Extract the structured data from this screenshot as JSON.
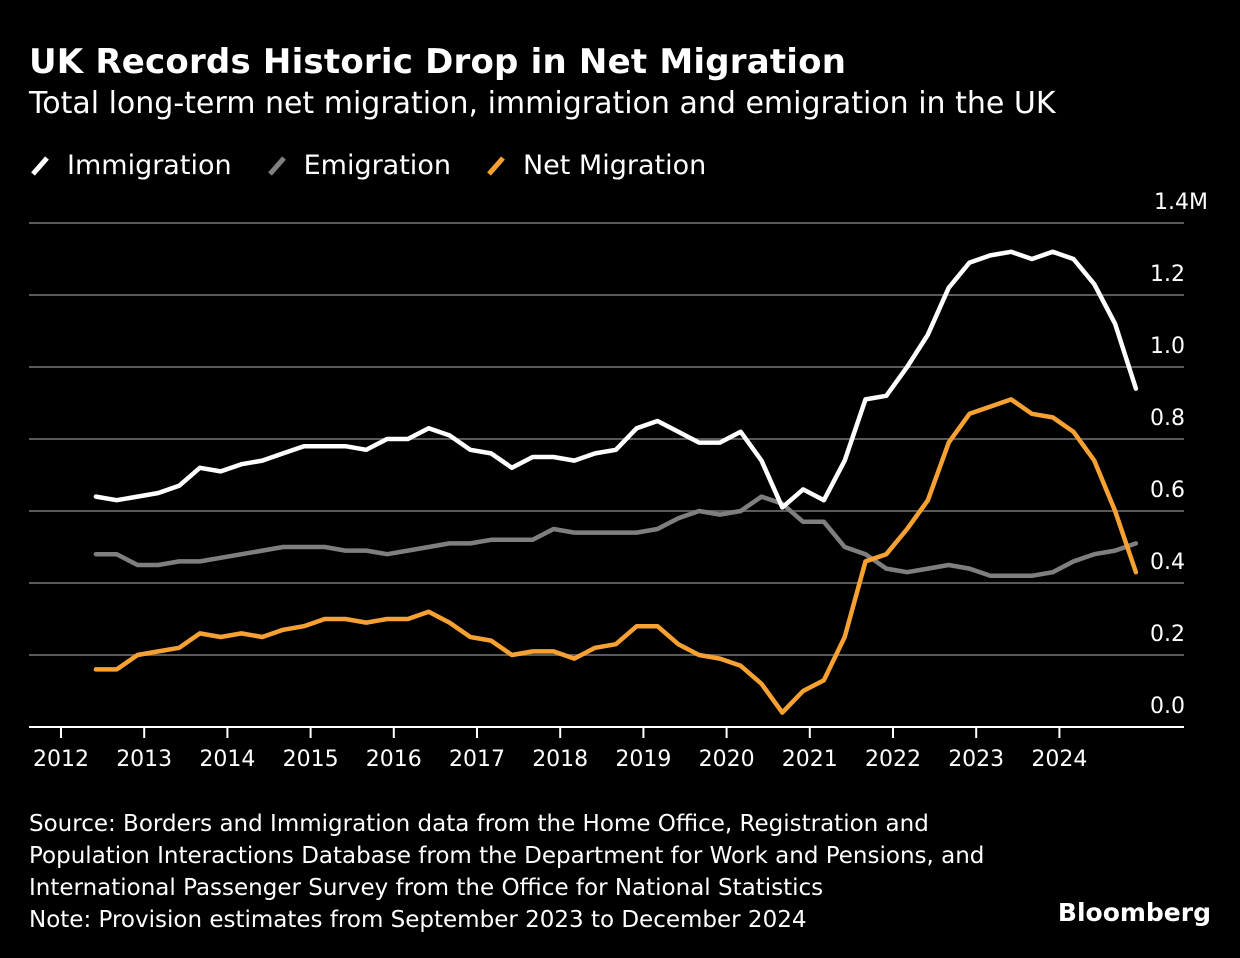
{
  "header": {
    "title": "UK Records Historic Drop in Net Migration",
    "subtitle": "Total long-term net migration, immigration and emigration in the UK"
  },
  "legend": [
    {
      "label": "Immigration",
      "color": "#ffffff",
      "icon": "slash-swatch-icon"
    },
    {
      "label": "Emigration",
      "color": "#7f7f7f",
      "icon": "slash-swatch-icon"
    },
    {
      "label": "Net Migration",
      "color": "#f7a133",
      "icon": "slash-swatch-icon"
    }
  ],
  "footer": {
    "source_lines": [
      "Source: Borders and Immigration data from the Home Office, Registration and",
      "Population Interactions Database from the Department for Work and Pensions, and",
      "International Passenger Survey from the Office for National Statistics",
      "Note: Provision estimates from September 2023 to December 2024"
    ],
    "brand": "Bloomberg"
  },
  "chart_data": {
    "type": "line",
    "title": "UK Records Historic Drop in Net Migration",
    "subtitle": "Total long-term net migration, immigration and emigration in the UK",
    "xlabel": "",
    "ylabel": "",
    "x_start": 2012.42,
    "x_step": 0.25,
    "xlim": [
      2011.6,
      2025.9
    ],
    "xticks": [
      2012,
      2013,
      2014,
      2015,
      2016,
      2017,
      2018,
      2019,
      2020,
      2021,
      2022,
      2023,
      2024
    ],
    "xtick_labels": [
      "2012",
      "2013",
      "2014",
      "2015",
      "2016",
      "2017",
      "2018",
      "2019",
      "2020",
      "2021",
      "2022",
      "2023",
      "2024"
    ],
    "ylim": [
      0,
      1.4
    ],
    "yticks": [
      0.0,
      0.2,
      0.4,
      0.6,
      0.8,
      1.0,
      1.2,
      1.4
    ],
    "ytick_labels": [
      "0.0",
      "0.2",
      "0.4",
      "0.6",
      "0.8",
      "1.0",
      "1.2",
      "1.4M"
    ],
    "grid": true,
    "legend_position": "top-left",
    "series": [
      {
        "name": "Immigration",
        "color": "#ffffff",
        "values": [
          0.64,
          0.63,
          0.64,
          0.65,
          0.67,
          0.72,
          0.71,
          0.73,
          0.74,
          0.76,
          0.78,
          0.78,
          0.78,
          0.77,
          0.8,
          0.8,
          0.83,
          0.81,
          0.77,
          0.76,
          0.72,
          0.75,
          0.75,
          0.74,
          0.76,
          0.77,
          0.83,
          0.85,
          0.82,
          0.79,
          0.79,
          0.82,
          0.74,
          0.61,
          0.66,
          0.63,
          0.74,
          0.91,
          0.92,
          1.0,
          1.09,
          1.22,
          1.29,
          1.31,
          1.32,
          1.3,
          1.32,
          1.3,
          1.23,
          1.12,
          0.94
        ]
      },
      {
        "name": "Emigration",
        "color": "#7f7f7f",
        "values": [
          0.48,
          0.48,
          0.45,
          0.45,
          0.46,
          0.46,
          0.47,
          0.48,
          0.49,
          0.5,
          0.5,
          0.5,
          0.49,
          0.49,
          0.48,
          0.49,
          0.5,
          0.51,
          0.51,
          0.52,
          0.52,
          0.52,
          0.55,
          0.54,
          0.54,
          0.54,
          0.54,
          0.55,
          0.58,
          0.6,
          0.59,
          0.6,
          0.64,
          0.62,
          0.57,
          0.57,
          0.5,
          0.48,
          0.44,
          0.43,
          0.44,
          0.45,
          0.44,
          0.42,
          0.42,
          0.42,
          0.43,
          0.46,
          0.48,
          0.49,
          0.51
        ]
      },
      {
        "name": "Net Migration",
        "color": "#f7a133",
        "values": [
          0.16,
          0.16,
          0.2,
          0.21,
          0.22,
          0.26,
          0.25,
          0.26,
          0.25,
          0.27,
          0.28,
          0.3,
          0.3,
          0.29,
          0.3,
          0.3,
          0.32,
          0.29,
          0.25,
          0.24,
          0.2,
          0.21,
          0.21,
          0.19,
          0.22,
          0.23,
          0.28,
          0.28,
          0.23,
          0.2,
          0.19,
          0.17,
          0.12,
          0.04,
          0.1,
          0.13,
          0.25,
          0.46,
          0.48,
          0.55,
          0.63,
          0.79,
          0.87,
          0.89,
          0.91,
          0.87,
          0.86,
          0.82,
          0.74,
          0.6,
          0.43
        ]
      }
    ]
  }
}
